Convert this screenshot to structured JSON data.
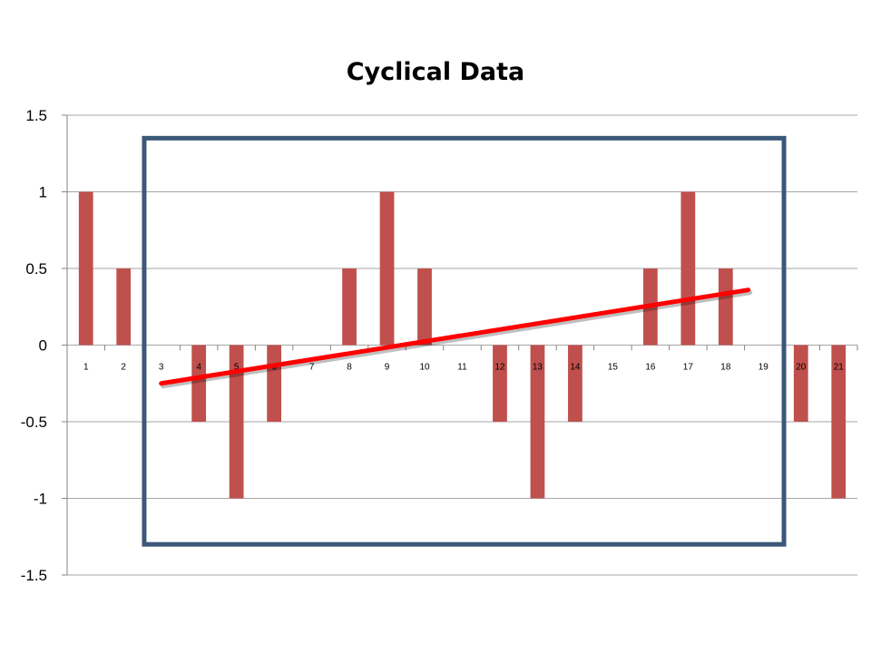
{
  "chart_data": {
    "type": "bar",
    "title": "Cyclical Data",
    "xlabel": "",
    "ylabel": "",
    "categories": [
      "1",
      "2",
      "3",
      "4",
      "5",
      "6",
      "7",
      "8",
      "9",
      "10",
      "11",
      "12",
      "13",
      "14",
      "15",
      "16",
      "17",
      "18",
      "19",
      "20",
      "21"
    ],
    "values": [
      1,
      0.5,
      0,
      -0.5,
      -1,
      -0.5,
      0,
      0.5,
      1,
      0.5,
      0,
      -0.5,
      -1,
      -0.5,
      0,
      0.5,
      1,
      0.5,
      0,
      -0.5,
      -1
    ],
    "ylim": [
      -1.5,
      1.5
    ],
    "yticks": [
      "1.5",
      "1",
      "0.5",
      "0",
      "-0.5",
      "-1",
      "-1.5"
    ],
    "ytick_values": [
      1.5,
      1,
      0.5,
      0,
      -0.5,
      -1,
      -1.5
    ],
    "grid": true,
    "legend": "none",
    "annotations": {
      "highlight_box": {
        "x_from": 2.5,
        "x_to": 19.5,
        "y_from": -1.3,
        "y_to": 1.35
      },
      "trend_line": {
        "x_start": 3,
        "y_start": -0.25,
        "x_end": 18.6,
        "y_end": 0.36
      }
    },
    "colors": {
      "bars": "#c0504d",
      "trend_line": "#ff0000",
      "highlight_box": "#3b5878",
      "grid": "#a6a6a6"
    }
  }
}
